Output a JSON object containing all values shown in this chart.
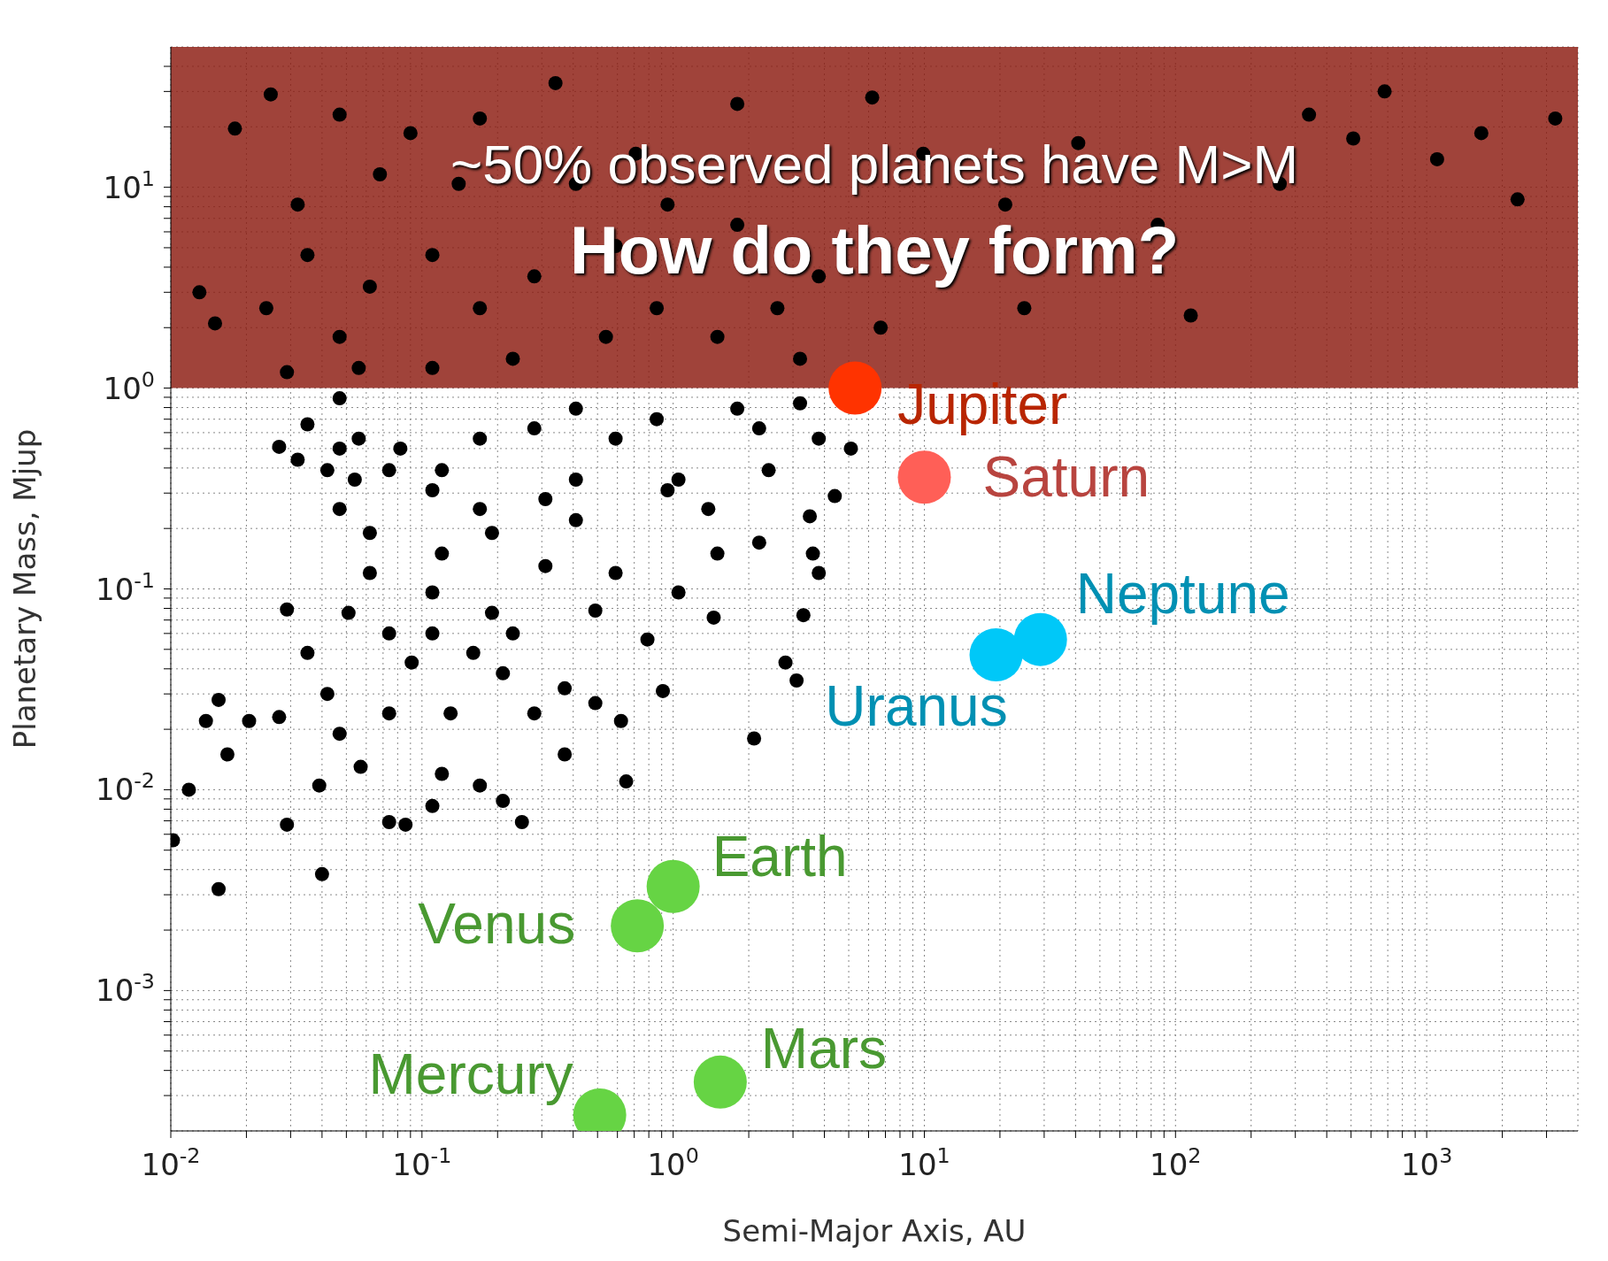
{
  "chart_data": {
    "type": "scatter",
    "xlabel": "Semi-Major Axis, AU",
    "ylabel": "Planetary Mass, Mjup",
    "log": "xy",
    "grid": true,
    "marker": "circle",
    "annotations": [
      "~50% observed planets have M>M",
      "How do they form?"
    ],
    "bands": [
      {
        "axis": "y",
        "from": 1,
        "to": 50,
        "label": null,
        "color": "#8b1a0f"
      }
    ],
    "xlim": [
      0.01,
      4000
    ],
    "ylim": [
      0.0002,
      50
    ],
    "xticks": [
      {
        "value": 0.01,
        "label": "10$^{-2}$"
      },
      {
        "value": 0.02,
        "label": null
      },
      {
        "value": 0.03,
        "label": null
      },
      {
        "value": 0.04,
        "label": null
      },
      {
        "value": 0.05,
        "label": null
      },
      {
        "value": 0.06,
        "label": null
      },
      {
        "value": 0.07,
        "label": null
      },
      {
        "value": 0.08,
        "label": null
      },
      {
        "value": 0.09,
        "label": null
      },
      {
        "value": 0.1,
        "label": "10$^{-1}$"
      },
      {
        "value": 0.2,
        "label": null
      },
      {
        "value": 0.3,
        "label": null
      },
      {
        "value": 0.4,
        "label": null
      },
      {
        "value": 0.5,
        "label": null
      },
      {
        "value": 0.6,
        "label": null
      },
      {
        "value": 0.7,
        "label": null
      },
      {
        "value": 0.8,
        "label": null
      },
      {
        "value": 0.9,
        "label": null
      },
      {
        "value": 1,
        "label": "10$^{0}$"
      },
      {
        "value": 2,
        "label": null
      },
      {
        "value": 3,
        "label": null
      },
      {
        "value": 4,
        "label": null
      },
      {
        "value": 5,
        "label": null
      },
      {
        "value": 6,
        "label": null
      },
      {
        "value": 7,
        "label": null
      },
      {
        "value": 8,
        "label": null
      },
      {
        "value": 9,
        "label": null
      },
      {
        "value": 10,
        "label": "10$^{1}$"
      },
      {
        "value": 20,
        "label": null
      },
      {
        "value": 30,
        "label": null
      },
      {
        "value": 40,
        "label": null
      },
      {
        "value": 50,
        "label": null
      },
      {
        "value": 60,
        "label": null
      },
      {
        "value": 70,
        "label": null
      },
      {
        "value": 80,
        "label": null
      },
      {
        "value": 90,
        "label": null
      },
      {
        "value": 100,
        "label": "10$^{2}$"
      },
      {
        "value": 200,
        "label": null
      },
      {
        "value": 300,
        "label": null
      },
      {
        "value": 400,
        "label": null
      },
      {
        "value": 500,
        "label": null
      },
      {
        "value": 600,
        "label": null
      },
      {
        "value": 700,
        "label": null
      },
      {
        "value": 800,
        "label": null
      },
      {
        "value": 900,
        "label": null
      },
      {
        "value": 1000,
        "label": "10$^{3}$"
      },
      {
        "value": 2000,
        "label": null
      },
      {
        "value": 3000,
        "label": null
      }
    ],
    "yticks": [
      {
        "value": 0.0003,
        "label": null
      },
      {
        "value": 0.0004,
        "label": null
      },
      {
        "value": 0.0005,
        "label": null
      },
      {
        "value": 0.0006,
        "label": null
      },
      {
        "value": 0.0007,
        "label": null
      },
      {
        "value": 0.0008,
        "label": null
      },
      {
        "value": 0.0009,
        "label": null
      },
      {
        "value": 0.001,
        "label": "10$^{-3}$"
      },
      {
        "value": 0.002,
        "label": null
      },
      {
        "value": 0.003,
        "label": null
      },
      {
        "value": 0.004,
        "label": null
      },
      {
        "value": 0.005,
        "label": null
      },
      {
        "value": 0.006,
        "label": null
      },
      {
        "value": 0.007,
        "label": null
      },
      {
        "value": 0.008,
        "label": null
      },
      {
        "value": 0.009,
        "label": null
      },
      {
        "value": 0.01,
        "label": "10$^{-2}$"
      },
      {
        "value": 0.02,
        "label": null
      },
      {
        "value": 0.03,
        "label": null
      },
      {
        "value": 0.04,
        "label": null
      },
      {
        "value": 0.05,
        "label": null
      },
      {
        "value": 0.06,
        "label": null
      },
      {
        "value": 0.07,
        "label": null
      },
      {
        "value": 0.08,
        "label": null
      },
      {
        "value": 0.09,
        "label": null
      },
      {
        "value": 0.1,
        "label": "10$^{-1}$"
      },
      {
        "value": 0.2,
        "label": null
      },
      {
        "value": 0.3,
        "label": null
      },
      {
        "value": 0.4,
        "label": null
      },
      {
        "value": 0.5,
        "label": null
      },
      {
        "value": 0.6,
        "label": null
      },
      {
        "value": 0.7,
        "label": null
      },
      {
        "value": 0.8,
        "label": null
      },
      {
        "value": 0.9,
        "label": null
      },
      {
        "value": 1,
        "label": "10$^{0}$"
      },
      {
        "value": 2,
        "label": null
      },
      {
        "value": 3,
        "label": null
      },
      {
        "value": 4,
        "label": null
      },
      {
        "value": 5,
        "label": null
      },
      {
        "value": 6,
        "label": null
      },
      {
        "value": 7,
        "label": null
      },
      {
        "value": 8,
        "label": null
      },
      {
        "value": 9,
        "label": null
      },
      {
        "value": 10,
        "label": "10$^{1}$"
      },
      {
        "value": 20,
        "label": null
      },
      {
        "value": 30,
        "label": null
      },
      {
        "value": 40,
        "label": null
      }
    ],
    "series": [
      {
        "color": "#000000",
        "x": [
          0.0102,
          0.0118,
          0.0155,
          0.04,
          0.029,
          0.0138,
          0.0155,
          0.0168,
          0.0205,
          0.027,
          0.029,
          0.027,
          0.035,
          0.047,
          0.054,
          0.047,
          0.062,
          0.035,
          0.042,
          0.047,
          0.057,
          0.074,
          0.091,
          0.11,
          0.13,
          0.16,
          0.19,
          0.23,
          0.12,
          0.17,
          0.25,
          0.21,
          0.086,
          0.37,
          0.28,
          0.49,
          0.65,
          0.62,
          0.91,
          0.79,
          0.49,
          0.59,
          0.31,
          0.19,
          0.12,
          0.17,
          0.28,
          0.41,
          0.59,
          0.86,
          1.05,
          1.38,
          1.5,
          1.05,
          1.45,
          2.2,
          2.4,
          2.2,
          1.8,
          3.2,
          3.8,
          5.1,
          4.4,
          3.5,
          3.8,
          3.6,
          3.3,
          2.8,
          3.1,
          2.1,
          0.95,
          0.41,
          0.31,
          0.17,
          0.11,
          0.082,
          0.047,
          0.056,
          0.042,
          0.032,
          0.074,
          0.039,
          0.074,
          0.11,
          0.37,
          0.21,
          0.11,
          0.074,
          0.051,
          0.062,
          0.12,
          0.41,
          0.018,
          0.025,
          0.047,
          0.09,
          0.17,
          0.34,
          0.71,
          1.8,
          6.2,
          9.9,
          21,
          41,
          85,
          115,
          260,
          510,
          1100,
          2300,
          3250,
          1650,
          680,
          340,
          0.013,
          0.015,
          0.024,
          0.035,
          0.047,
          0.062,
          0.11,
          0.17,
          0.28,
          0.54,
          0.86,
          1.25,
          1.8,
          2.6,
          3.8,
          6.7,
          13,
          25,
          0.95,
          0.41,
          0.14,
          0.068,
          0.032,
          0.59,
          1.5,
          3.2,
          0.056,
          0.029,
          0.23,
          0.11
        ],
        "values": [
          0.0056,
          0.01,
          0.0032,
          0.0038,
          0.0067,
          0.022,
          0.028,
          0.015,
          0.022,
          0.023,
          0.079,
          0.51,
          0.66,
          0.5,
          0.35,
          0.25,
          0.12,
          0.048,
          0.03,
          0.019,
          0.013,
          0.024,
          0.043,
          0.06,
          0.024,
          0.048,
          0.076,
          0.06,
          0.012,
          0.0105,
          0.0069,
          0.0088,
          0.0067,
          0.015,
          0.024,
          0.027,
          0.011,
          0.022,
          0.031,
          0.056,
          0.078,
          0.12,
          0.13,
          0.19,
          0.39,
          0.56,
          0.63,
          0.79,
          0.56,
          0.7,
          0.35,
          0.25,
          0.15,
          0.096,
          0.072,
          0.17,
          0.39,
          0.63,
          0.79,
          0.84,
          0.56,
          0.5,
          0.29,
          0.23,
          0.12,
          0.15,
          0.074,
          0.043,
          0.035,
          0.018,
          0.31,
          0.35,
          0.28,
          0.25,
          0.31,
          0.5,
          0.89,
          0.56,
          0.39,
          0.44,
          0.39,
          0.0105,
          0.0069,
          0.0083,
          0.032,
          0.038,
          0.096,
          0.06,
          0.076,
          0.19,
          0.15,
          0.22,
          19.6,
          29,
          23,
          18.6,
          22,
          33,
          14.7,
          26,
          28,
          14.7,
          8.2,
          16.6,
          6.5,
          2.3,
          10.4,
          17.5,
          13.8,
          8.7,
          22,
          18.6,
          30,
          23,
          3,
          2.1,
          2.5,
          4.6,
          1.8,
          3.2,
          4.6,
          2.5,
          3.6,
          1.8,
          2.5,
          4.1,
          6.5,
          2.5,
          3.6,
          2,
          4.1,
          2.5,
          8.2,
          10.4,
          10.4,
          11.6,
          8.2,
          5.1,
          1.8,
          1.4,
          1.26,
          1.2,
          1.4,
          1.26
        ]
      },
      {
        "name": "Jupiter",
        "color": "#ff3300",
        "x": [
          5.3
        ],
        "values": [
          1
        ]
      },
      {
        "name": "Saturn",
        "color": "#ff5f57",
        "x": [
          10
        ],
        "values": [
          0.36
        ]
      },
      {
        "name": "Neptune",
        "color": "#00c8f8",
        "x": [
          29
        ],
        "values": [
          0.056
        ]
      },
      {
        "name": "Uranus",
        "color": "#00c8f8",
        "x": [
          19.3
        ],
        "values": [
          0.047
        ]
      },
      {
        "name": "Earth",
        "color": "#66d444",
        "x": [
          1
        ],
        "values": [
          0.0033
        ]
      },
      {
        "name": "Venus",
        "color": "#66d444",
        "x": [
          0.72
        ],
        "values": [
          0.0021
        ]
      },
      {
        "name": "Mercury",
        "color": "#66d444",
        "x": [
          0.51
        ],
        "values": [
          0.00024
        ]
      },
      {
        "name": "Mars",
        "color": "#66d444",
        "x": [
          1.54
        ],
        "values": [
          0.00035
        ]
      }
    ]
  }
}
